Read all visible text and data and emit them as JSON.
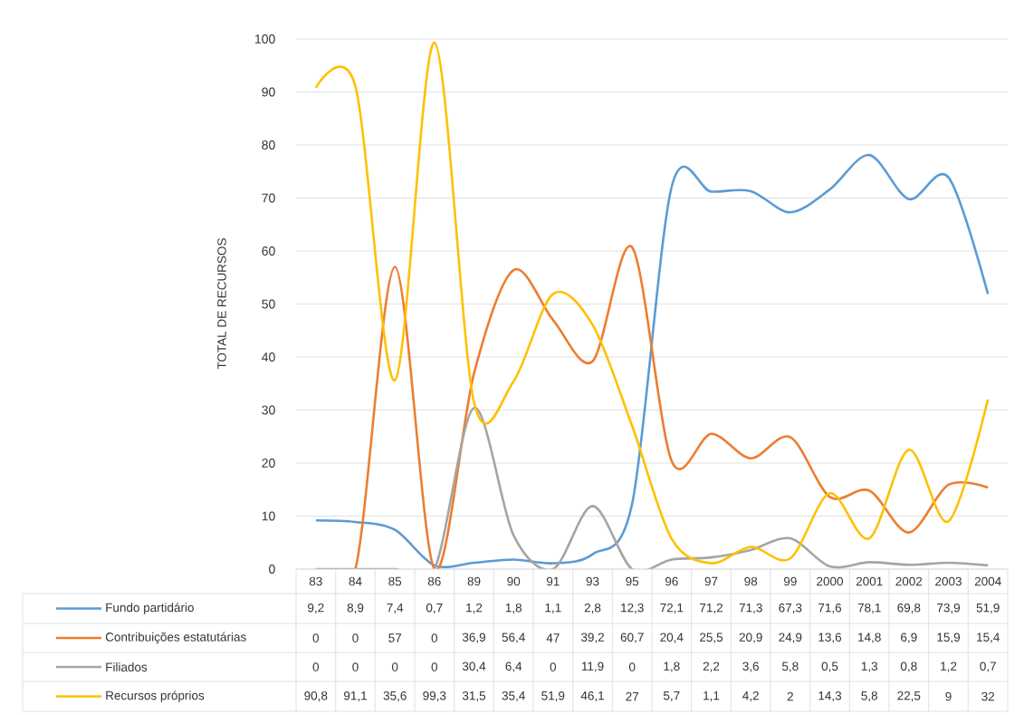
{
  "chart_data": {
    "type": "line",
    "ylabel": "TOTAL DE RECURSOS",
    "categories": [
      "83",
      "84",
      "85",
      "86",
      "89",
      "90",
      "91",
      "93",
      "95",
      "96",
      "97",
      "98",
      "99",
      "2000",
      "2001",
      "2002",
      "2003",
      "2004"
    ],
    "series": [
      {
        "name": "Fundo partidário",
        "color": "#5b9bd5",
        "values": [
          9.2,
          8.9,
          7.4,
          0.7,
          1.2,
          1.8,
          1.1,
          2.8,
          12.3,
          72.1,
          71.2,
          71.3,
          67.3,
          71.6,
          78.1,
          69.8,
          73.9,
          51.9
        ],
        "value_labels": [
          "9,2",
          "8,9",
          "7,4",
          "0,7",
          "1,2",
          "1,8",
          "1,1",
          "2,8",
          "12,3",
          "72,1",
          "71,2",
          "71,3",
          "67,3",
          "71,6",
          "78,1",
          "69,8",
          "73,9",
          "51,9"
        ]
      },
      {
        "name": "Contribuições estatutárias",
        "color": "#ed7d31",
        "values": [
          0,
          0,
          57,
          0,
          36.9,
          56.4,
          47,
          39.2,
          60.7,
          20.4,
          25.5,
          20.9,
          24.9,
          13.6,
          14.8,
          6.9,
          15.9,
          15.4
        ],
        "value_labels": [
          "0",
          "0",
          "57",
          "0",
          "36,9",
          "56,4",
          "47",
          "39,2",
          "60,7",
          "20,4",
          "25,5",
          "20,9",
          "24,9",
          "13,6",
          "14,8",
          "6,9",
          "15,9",
          "15,4"
        ]
      },
      {
        "name": "Filiados",
        "color": "#a5a5a5",
        "values": [
          0,
          0,
          0,
          0,
          30.4,
          6.4,
          0,
          11.9,
          0,
          1.8,
          2.2,
          3.6,
          5.8,
          0.5,
          1.3,
          0.8,
          1.2,
          0.7
        ],
        "value_labels": [
          "0",
          "0",
          "0",
          "0",
          "30,4",
          "6,4",
          "0",
          "11,9",
          "0",
          "1,8",
          "2,2",
          "3,6",
          "5,8",
          "0,5",
          "1,3",
          "0,8",
          "1,2",
          "0,7"
        ]
      },
      {
        "name": "Recursos próprios",
        "color": "#ffc000",
        "values": [
          90.8,
          91.1,
          35.6,
          99.3,
          31.5,
          35.4,
          51.9,
          46.1,
          27,
          5.7,
          1.1,
          4.2,
          2,
          14.3,
          5.8,
          22.5,
          9,
          32
        ],
        "value_labels": [
          "90,8",
          "91,1",
          "35,6",
          "99,3",
          "31,5",
          "35,4",
          "51,9",
          "46,1",
          "27",
          "5,7",
          "1,1",
          "4,2",
          "2",
          "14,3",
          "5,8",
          "22,5",
          "9",
          "32"
        ]
      }
    ],
    "ylim": [
      0,
      100
    ],
    "yticks": [
      0,
      10,
      20,
      30,
      40,
      50,
      60,
      70,
      80,
      90,
      100
    ],
    "grid": "y",
    "legend": "bottom",
    "line_style": "solid",
    "marker": "none"
  }
}
